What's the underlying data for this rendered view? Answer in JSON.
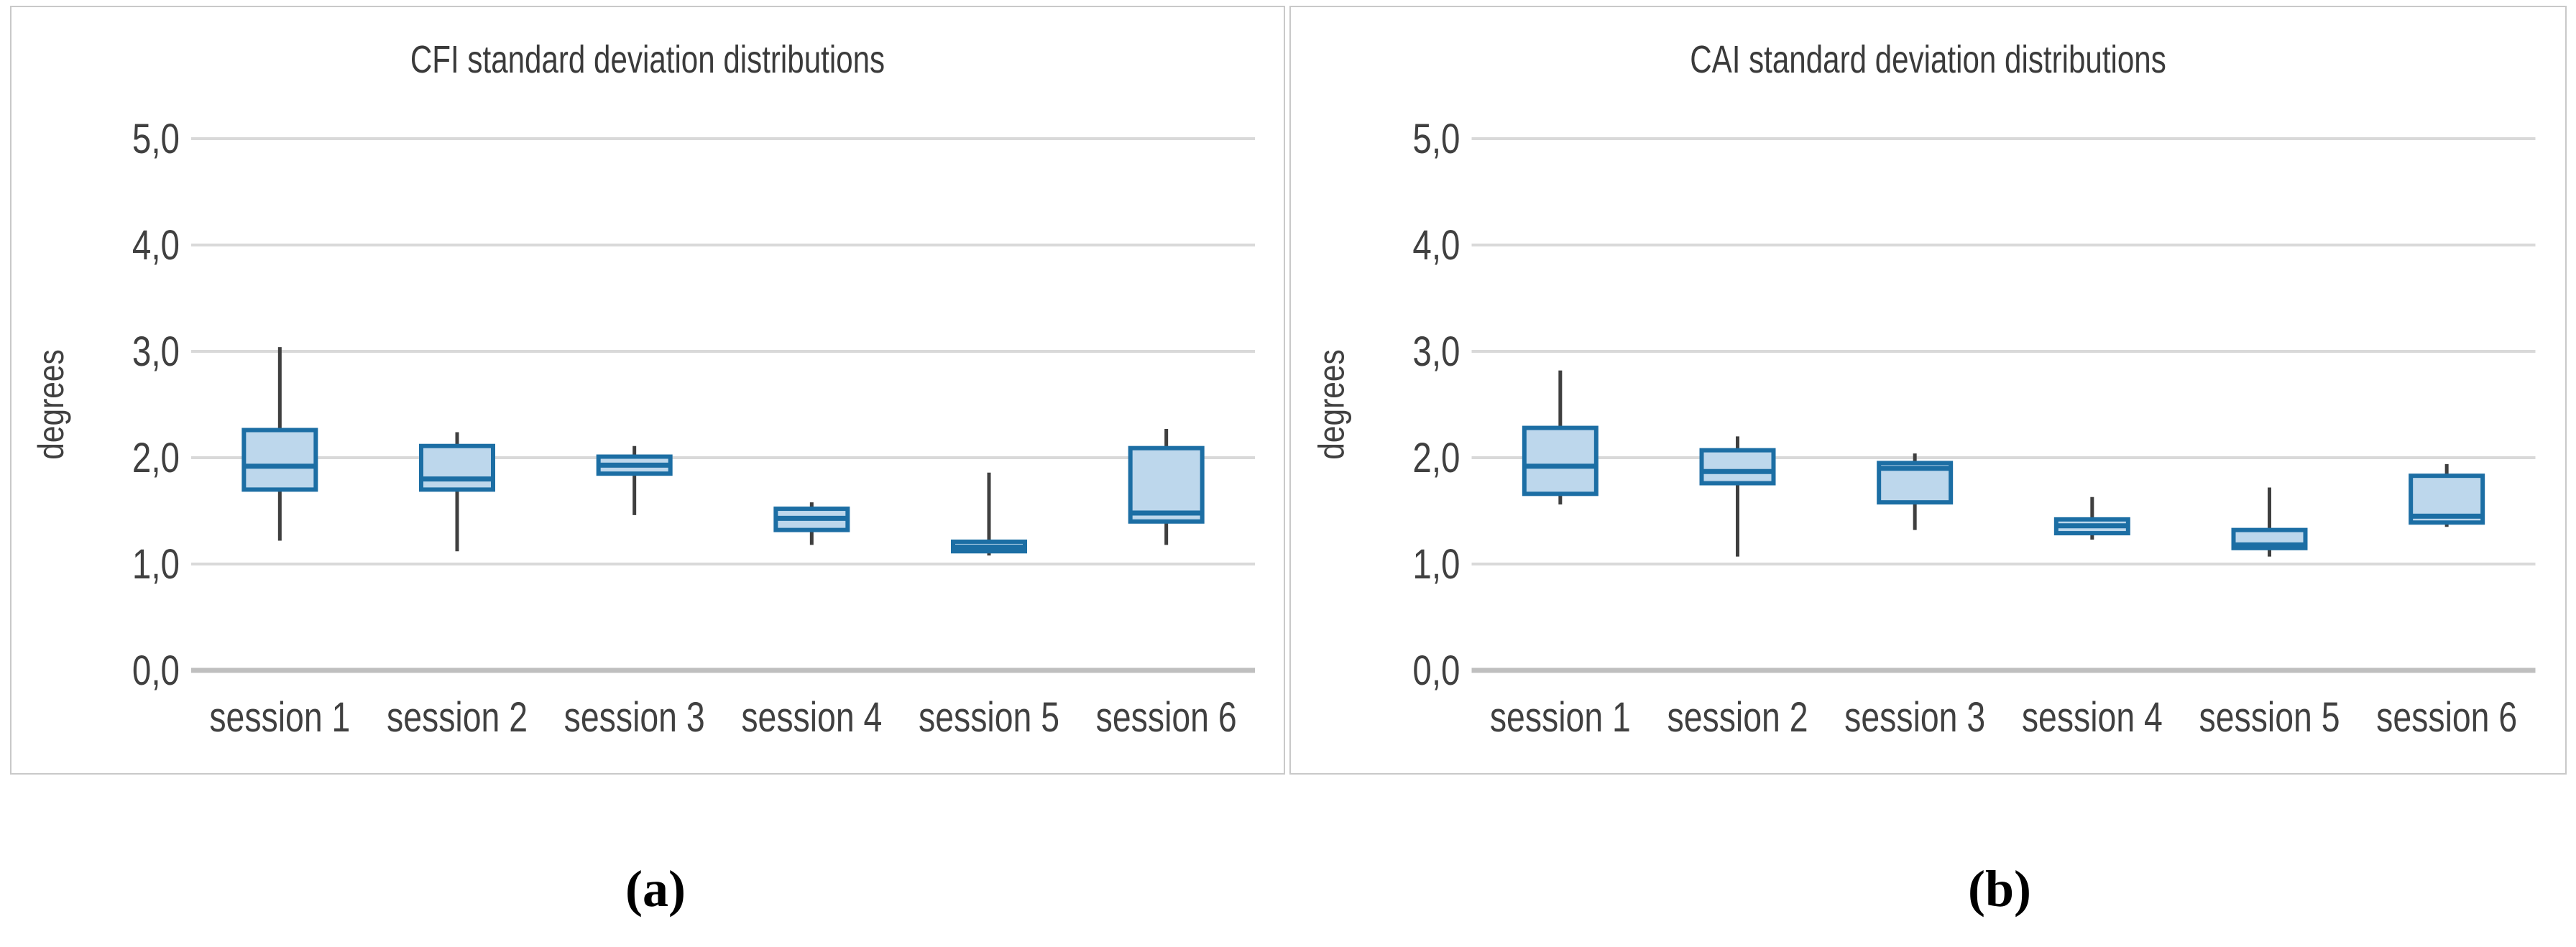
{
  "figure": {
    "panels": [
      {
        "id": "a",
        "title": "CFI standard deviation distributions",
        "caption": "(a)"
      },
      {
        "id": "b",
        "title": "CAI standard deviation distributions",
        "caption": "(b)"
      }
    ]
  },
  "colors": {
    "box_fill": "#bdd7ec",
    "box_stroke": "#1c6ea4",
    "median": "#1c6ea4",
    "whisker": "#3f3f3f",
    "gridline": "#d9d9d9",
    "axis_line": "#bfbfbf",
    "text": "#404040",
    "panel_border": "#c9c9c9"
  },
  "chart_data": [
    {
      "type": "boxplot",
      "title": "CFI standard deviation distributions",
      "xlabel": "",
      "ylabel": "degrees",
      "ylim": [
        0,
        5.5
      ],
      "grid": true,
      "legend": "none",
      "decimal_separator": ",",
      "yticks": [
        {
          "value": 0,
          "label": "0,0"
        },
        {
          "value": 1,
          "label": "1,0"
        },
        {
          "value": 2,
          "label": "2,0"
        },
        {
          "value": 3,
          "label": "3,0"
        },
        {
          "value": 4,
          "label": "4,0"
        },
        {
          "value": 5,
          "label": "5,0"
        }
      ],
      "categories": [
        "session 1",
        "session 2",
        "session 3",
        "session 4",
        "session 5",
        "session 6"
      ],
      "boxes": [
        {
          "category": "session 1",
          "whisker_low": 1.22,
          "q1": 1.7,
          "median": 1.92,
          "q3": 2.26,
          "whisker_high": 3.04
        },
        {
          "category": "session 2",
          "whisker_low": 1.12,
          "q1": 1.7,
          "median": 1.8,
          "q3": 2.11,
          "whisker_high": 2.24
        },
        {
          "category": "session 3",
          "whisker_low": 1.46,
          "q1": 1.85,
          "median": 1.93,
          "q3": 2.01,
          "whisker_high": 2.11
        },
        {
          "category": "session 4",
          "whisker_low": 1.18,
          "q1": 1.32,
          "median": 1.43,
          "q3": 1.52,
          "whisker_high": 1.58
        },
        {
          "category": "session 5",
          "whisker_low": 1.08,
          "q1": 1.12,
          "median": 1.16,
          "q3": 1.21,
          "whisker_high": 1.86
        },
        {
          "category": "session 6",
          "whisker_low": 1.18,
          "q1": 1.4,
          "median": 1.48,
          "q3": 2.09,
          "whisker_high": 2.27
        }
      ]
    },
    {
      "type": "boxplot",
      "title": "CAI standard deviation distributions",
      "xlabel": "",
      "ylabel": "degrees",
      "ylim": [
        0,
        5.5
      ],
      "grid": true,
      "legend": "none",
      "decimal_separator": ",",
      "yticks": [
        {
          "value": 0,
          "label": "0,0"
        },
        {
          "value": 1,
          "label": "1,0"
        },
        {
          "value": 2,
          "label": "2,0"
        },
        {
          "value": 3,
          "label": "3,0"
        },
        {
          "value": 4,
          "label": "4,0"
        },
        {
          "value": 5,
          "label": "5,0"
        }
      ],
      "categories": [
        "session 1",
        "session 2",
        "session 3",
        "session 4",
        "session 5",
        "session 6"
      ],
      "boxes": [
        {
          "category": "session 1",
          "whisker_low": 1.56,
          "q1": 1.66,
          "median": 1.92,
          "q3": 2.28,
          "whisker_high": 2.82
        },
        {
          "category": "session 2",
          "whisker_low": 1.07,
          "q1": 1.76,
          "median": 1.87,
          "q3": 2.07,
          "whisker_high": 2.2
        },
        {
          "category": "session 3",
          "whisker_low": 1.32,
          "q1": 1.58,
          "median": 1.9,
          "q3": 1.95,
          "whisker_high": 2.04
        },
        {
          "category": "session 4",
          "whisker_low": 1.23,
          "q1": 1.29,
          "median": 1.36,
          "q3": 1.42,
          "whisker_high": 1.63
        },
        {
          "category": "session 5",
          "whisker_low": 1.07,
          "q1": 1.15,
          "median": 1.18,
          "q3": 1.32,
          "whisker_high": 1.72
        },
        {
          "category": "session 6",
          "whisker_low": 1.35,
          "q1": 1.39,
          "median": 1.45,
          "q3": 1.83,
          "whisker_high": 1.94
        }
      ]
    }
  ]
}
